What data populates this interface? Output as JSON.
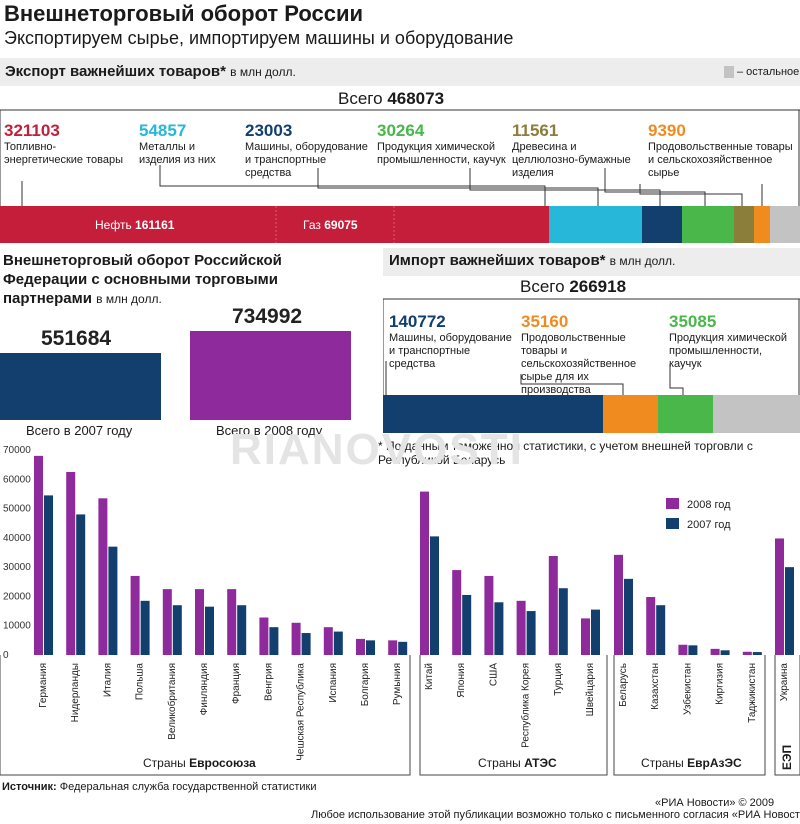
{
  "header": {
    "title": "Внешнеторговый оборот России",
    "subtitle": "Экспортируем сырье, импортируем машины и оборудование"
  },
  "export": {
    "title": "Экспорт важнейших товаров*",
    "unit": "в млн долл.",
    "legend_label": "– остальное",
    "total_label": "Всего",
    "total_value": "468073",
    "categories": [
      {
        "value": "321103",
        "label": "Топливно-энергетические товары",
        "color": "#c41e3a"
      },
      {
        "value": "54857",
        "label": "Металлы и изделия из них",
        "color": "#27b7d8"
      },
      {
        "value": "23003",
        "label": "Машины, оборудование и транспортные средства",
        "color": "#123f6e"
      },
      {
        "value": "30264",
        "label": "Продукция химической промышленности, каучук",
        "color": "#49b749"
      },
      {
        "value": "11561",
        "label": "Древесина и целлюлозно-бумажные изделия",
        "color": "#8b7d3a"
      },
      {
        "value": "9390",
        "label": "Продовольственные товары и сельскохозяйственное сырье",
        "color": "#f08b1f"
      }
    ],
    "oil_label": "Нефть",
    "oil_value": "161161",
    "gas_label": "Газ",
    "gas_value": "69075",
    "other_color": "#c3c3c3"
  },
  "turnover": {
    "title_line1": "Внешнеторговый оборот Российской",
    "title_line2": "Федерации с основными торговыми",
    "title_line3": "партнерами",
    "unit": "в млн долл.",
    "value_2007": "551684",
    "label_2007": "Всего в 2007 году",
    "color_2007": "#123f6e",
    "value_2008": "734992",
    "label_2008": "Всего в 2008 году",
    "color_2008": "#8e2a9c"
  },
  "import": {
    "title": "Импорт важнейших товаров*",
    "unit": "в млн долл.",
    "total_label": "Всего",
    "total_value": "266918",
    "categories": [
      {
        "value": "140772",
        "label": "Машины, оборудование и транспортные средства",
        "color": "#123f6e"
      },
      {
        "value": "35160",
        "label": "Продовольственные товары и сельскохозяйственное сырье для их производства",
        "color": "#f08b1f"
      },
      {
        "value": "35085",
        "label": "Продукция химической промышленности, каучук",
        "color": "#49b749"
      }
    ],
    "other_color": "#c3c3c3",
    "note": "* По данным таможенной статистики, с учетом внешней торговли с Республикой Беларусь"
  },
  "watermark": "RIANOVOSTI",
  "chart_data": {
    "type": "bar",
    "title": "",
    "xlabel": "",
    "ylabel": "",
    "ylim": [
      0,
      70000
    ],
    "yticks": [
      "0",
      "10000",
      "20000",
      "30000",
      "40000",
      "50000",
      "60000",
      "70000"
    ],
    "grid": false,
    "legend_position": "top-right",
    "categories": [
      "Германия",
      "Нидерланды",
      "Италия",
      "Польша",
      "Великобритания",
      "Финляндия",
      "Франция",
      "Венгрия",
      "Чешская Республика",
      "Испания",
      "Болгария",
      "Румыния",
      "Китай",
      "Япония",
      "США",
      "Республика Корея",
      "Турция",
      "Швейцария",
      "Беларусь",
      "Казахстан",
      "Узбекистан",
      "Киргизия",
      "Таджикистан",
      "Украина"
    ],
    "series": [
      {
        "name": "2008 год",
        "color": "#8e2a9c",
        "values": [
          68000,
          62500,
          53500,
          27000,
          22500,
          22500,
          22500,
          12800,
          11000,
          9500,
          5500,
          5000,
          55800,
          29000,
          27000,
          18500,
          33800,
          12500,
          34200,
          19800,
          3500,
          2100,
          1100,
          39800
        ]
      },
      {
        "name": "2007 год",
        "color": "#123f6e",
        "values": [
          54500,
          48000,
          37000,
          18500,
          17000,
          16500,
          17000,
          9500,
          7500,
          8000,
          5000,
          4500,
          40500,
          20500,
          18000,
          15000,
          22800,
          15500,
          26000,
          17000,
          3300,
          1600,
          1000,
          30000
        ]
      }
    ],
    "groups": [
      {
        "prefix": "Страны",
        "name": "Евросоюза"
      },
      {
        "prefix": "Страны",
        "name": "АТЭС"
      },
      {
        "prefix": "Страны",
        "name": "ЕврАзЭС"
      },
      {
        "prefix": "",
        "name": "ЕЭП"
      }
    ]
  },
  "footer": {
    "source_label": "Источник:",
    "source_text": "Федеральная служба государственной статистики",
    "copyright": "«РИА Новости» © 2009",
    "usage": "Любое использование этой публикации возможно только с письменного согласия «РИА Новости»"
  }
}
